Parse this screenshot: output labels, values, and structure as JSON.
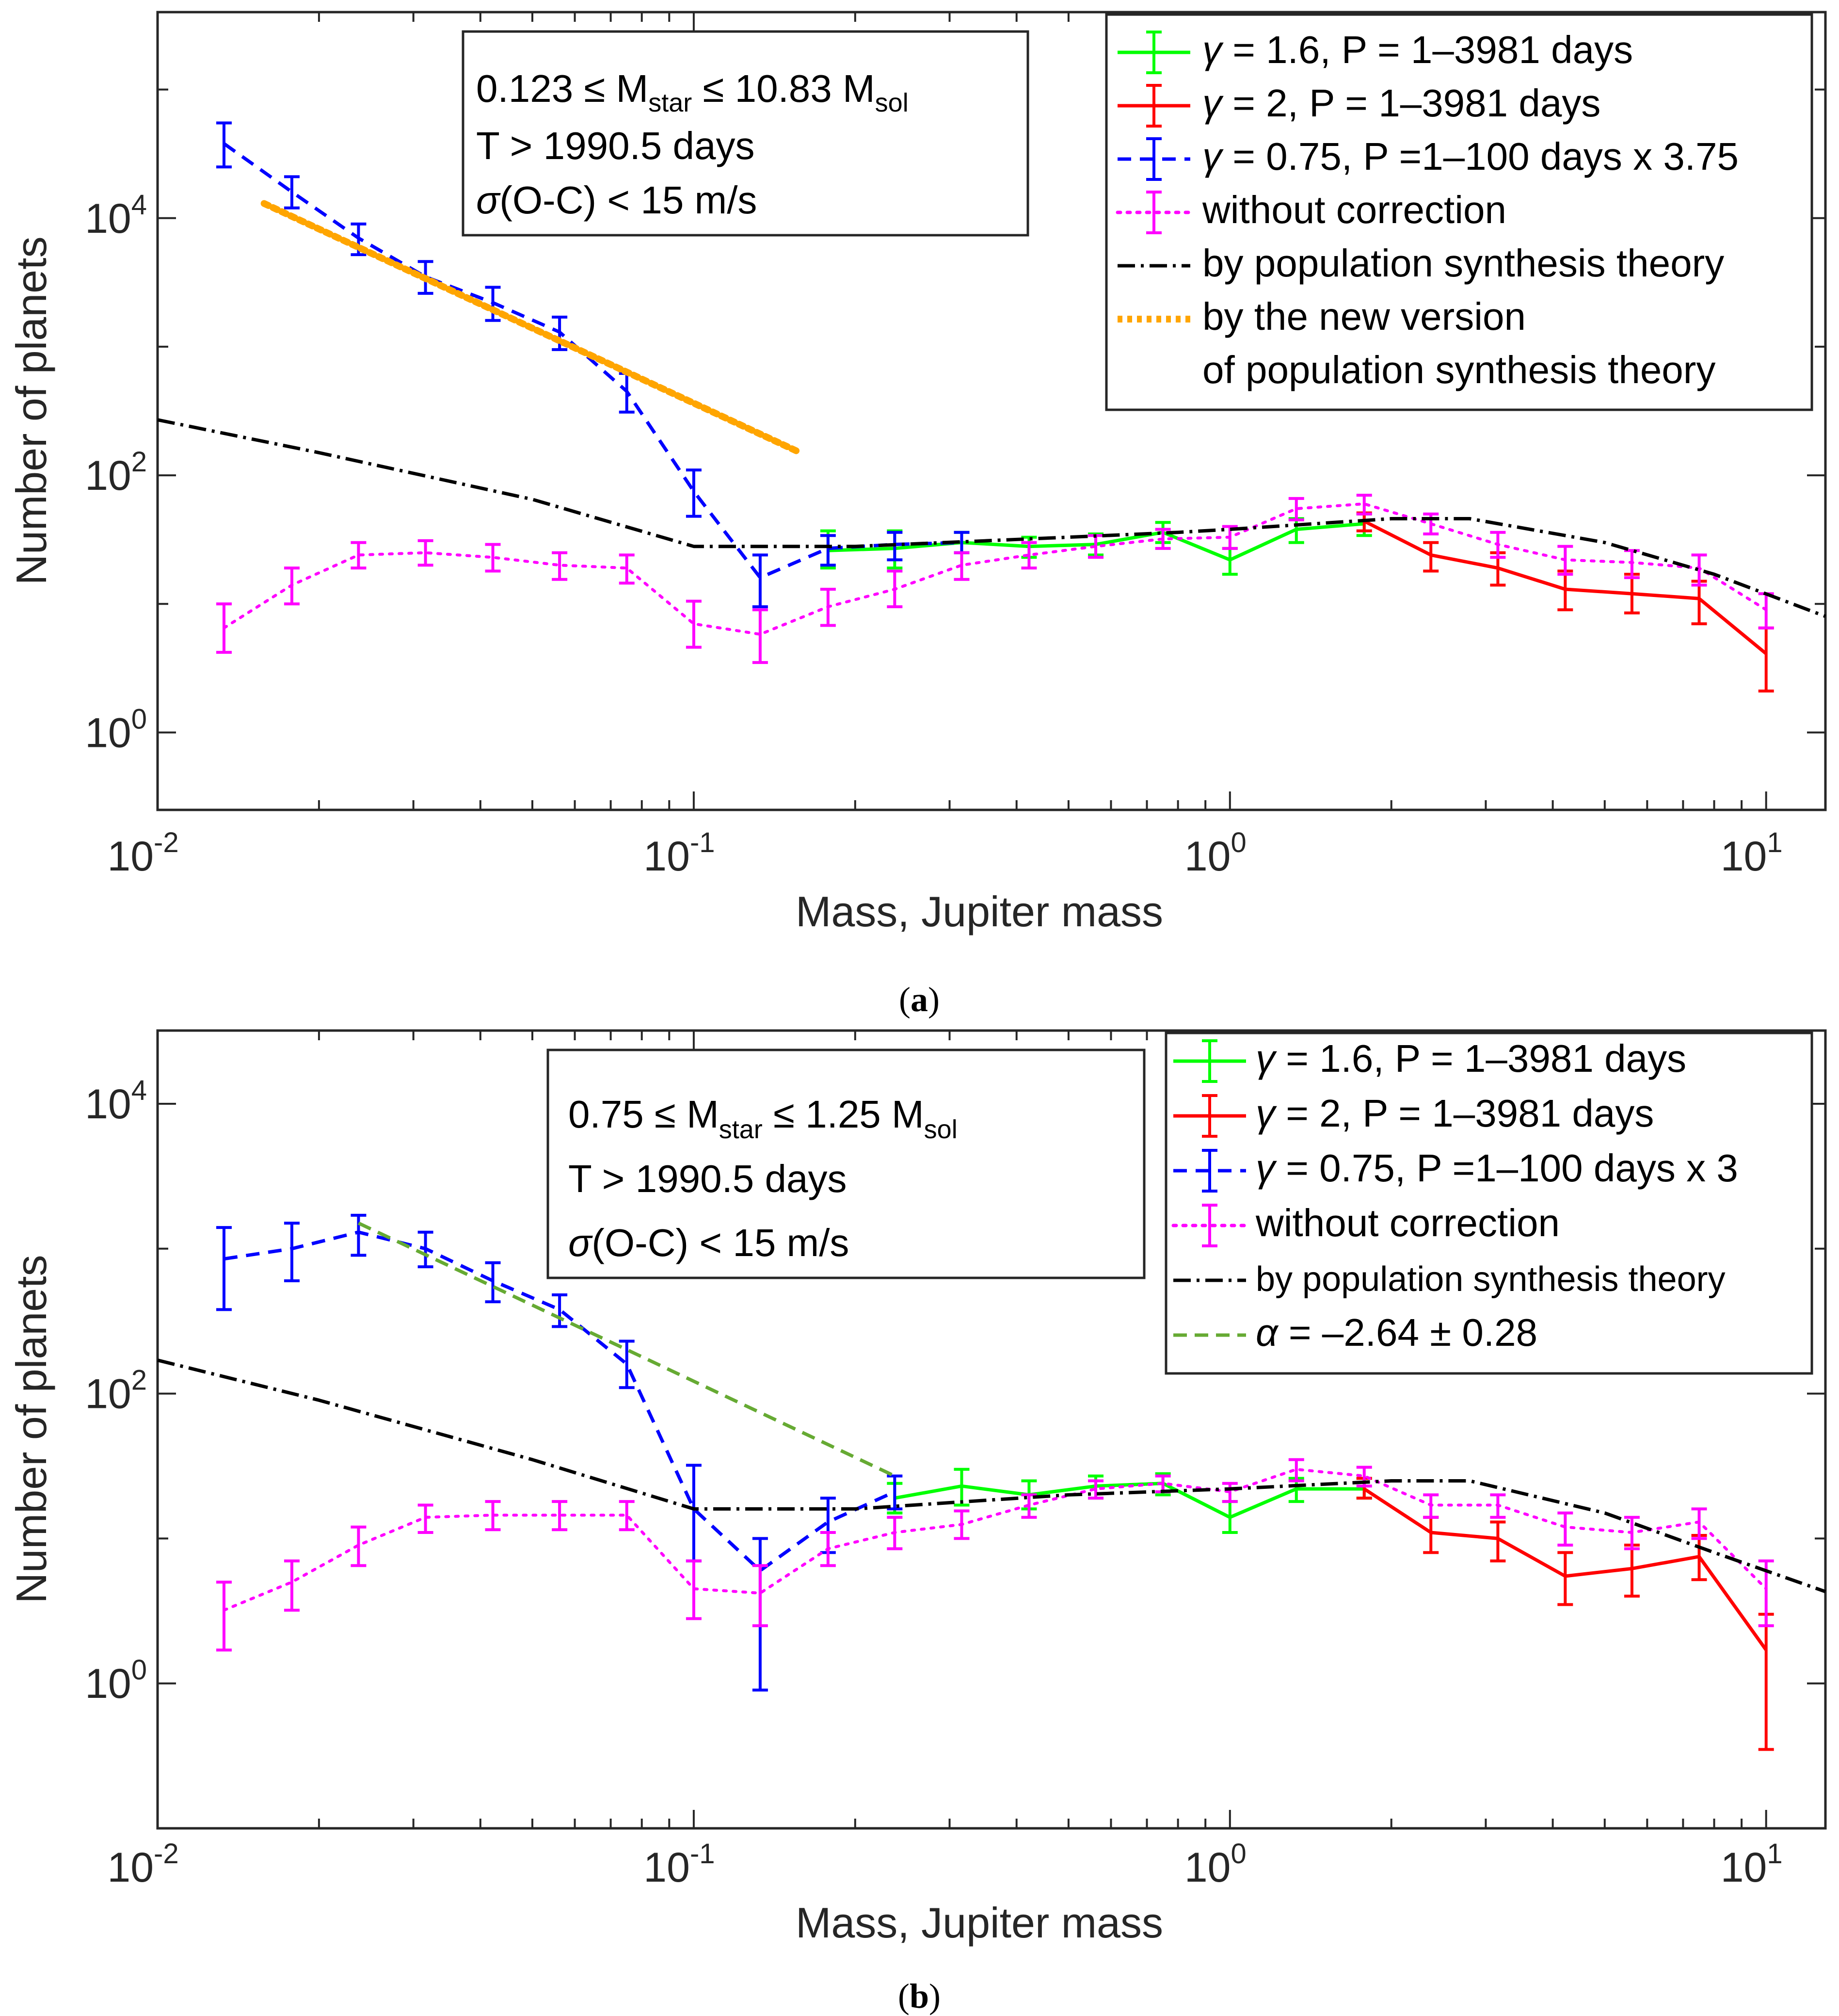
{
  "figure": {
    "caption_a": "(a)",
    "caption_b": "(b)",
    "caption_a_letter": "a",
    "caption_b_letter": "b"
  },
  "chart_data": [
    {
      "type": "line",
      "panel": "a",
      "xlabel": "Mass, Jupiter mass",
      "ylabel": "Number of planets",
      "xscale": "log",
      "yscale": "log",
      "xlim": [
        0.01,
        12.9
      ],
      "ylim": [
        0.25,
        400000
      ],
      "xticks": [
        {
          "base": "10",
          "exp": "-2"
        },
        {
          "base": "10",
          "exp": "-1"
        },
        {
          "base": "10",
          "exp": "0"
        },
        {
          "base": "10",
          "exp": "1"
        }
      ],
      "yticks": [
        {
          "base": "10",
          "exp": "0"
        },
        {
          "base": "10",
          "exp": "2"
        },
        {
          "base": "10",
          "exp": "4"
        }
      ],
      "info": {
        "line1_pre": "0.123 ≤ M",
        "line1_sub1": "star",
        "line1_mid": " ≤ 10.83 M",
        "line1_sub2": "sol",
        "line2": "T > 1990.5 days",
        "line3_sym": "σ",
        "line3_rest": "(O-C) < 15 m/s"
      },
      "legend": [
        {
          "sym": "γ",
          "label": " = 1.6, P = 1–3981 days",
          "color": "#00ff00",
          "style": "solid"
        },
        {
          "sym": "γ",
          "label": " = 2, P = 1–3981 days",
          "color": "#ff0000",
          "style": "solid"
        },
        {
          "sym": "γ",
          "label": " = 0.75, P =1–100 days x 3.75",
          "color": "#0000ff",
          "style": "dashed"
        },
        {
          "sym": "",
          "label": "without correction",
          "color": "#ff00ff",
          "style": "dotted"
        },
        {
          "sym": "",
          "label": "by population synthesis theory",
          "color": "#000000",
          "style": "dashdot"
        },
        {
          "sym": "",
          "label": "by the new version",
          "color": "#ffa500",
          "style": "thickdot"
        },
        {
          "sym": "",
          "label": "of population synthesis theory",
          "color": "",
          "style": "none"
        }
      ],
      "series": [
        {
          "name": "green",
          "color": "#00ff00",
          "width": 7,
          "dash": "",
          "errbars": true,
          "points": [
            [
              0.178,
              26,
              37,
              19
            ],
            [
              0.237,
              27,
              37,
              19
            ],
            [
              0.316,
              30,
              36,
              25
            ],
            [
              0.422,
              28,
              33,
              23
            ],
            [
              0.562,
              29,
              35,
              24
            ],
            [
              0.75,
              36,
              43,
              30
            ],
            [
              1.0,
              22,
              27,
              17
            ],
            [
              1.33,
              38,
              46,
              30
            ],
            [
              1.78,
              42,
              50,
              34
            ]
          ]
        },
        {
          "name": "red",
          "color": "#ff0000",
          "width": 7,
          "dash": "",
          "errbars": true,
          "points": [
            [
              1.78,
              44,
              51,
              37
            ],
            [
              2.37,
              24,
              30,
              18
            ],
            [
              3.16,
              19,
              25,
              14
            ],
            [
              4.22,
              13,
              18,
              9
            ],
            [
              5.62,
              12,
              17,
              8.5
            ],
            [
              7.5,
              11,
              15,
              7
            ],
            [
              10.0,
              4.1,
              6.5,
              2.1
            ]
          ]
        },
        {
          "name": "blue",
          "color": "#0000ff",
          "width": 7,
          "dash": "28,18",
          "errbars": true,
          "points": [
            [
              0.0133,
              38000,
              55000,
              25000
            ],
            [
              0.0178,
              16000,
              21000,
              12000
            ],
            [
              0.0237,
              7000,
              9000,
              5200
            ],
            [
              0.0316,
              3500,
              4600,
              2600
            ],
            [
              0.0422,
              2200,
              2900,
              1600
            ],
            [
              0.0562,
              1300,
              1700,
              950
            ],
            [
              0.075,
              450,
              620,
              310
            ],
            [
              0.1,
              75,
              110,
              48
            ],
            [
              0.133,
              16,
              24,
              9.5
            ],
            [
              0.178,
              27,
              34,
              20
            ],
            [
              0.237,
              29,
              36,
              22
            ],
            [
              0.316,
              30,
              36,
              25
            ]
          ]
        },
        {
          "name": "magenta",
          "color": "#ff00ff",
          "width": 6,
          "dash": "6,14",
          "errbars": true,
          "points": [
            [
              0.0133,
              6.5,
              10,
              4.2
            ],
            [
              0.0178,
              14,
              19,
              10
            ],
            [
              0.0237,
              24,
              30,
              19
            ],
            [
              0.0316,
              25,
              31,
              20
            ],
            [
              0.0422,
              23,
              29,
              18
            ],
            [
              0.0562,
              20,
              25,
              15.5
            ],
            [
              0.075,
              19,
              24,
              14.5
            ],
            [
              0.1,
              7,
              10.5,
              4.6
            ],
            [
              0.133,
              5.8,
              9,
              3.5
            ],
            [
              0.178,
              9.5,
              13,
              6.8
            ],
            [
              0.237,
              13,
              18,
              9.5
            ],
            [
              0.316,
              20,
              25,
              15.5
            ],
            [
              0.422,
              24,
              30,
              19
            ],
            [
              0.562,
              28,
              34,
              23
            ],
            [
              0.75,
              32,
              38,
              27
            ],
            [
              1.0,
              33,
              40,
              27
            ],
            [
              1.33,
              55,
              66,
              45
            ],
            [
              1.78,
              60,
              70,
              50
            ],
            [
              2.37,
              42,
              50,
              35
            ],
            [
              3.16,
              29,
              36,
              23
            ],
            [
              4.22,
              22,
              28,
              17
            ],
            [
              5.62,
              21,
              26,
              16
            ],
            [
              7.5,
              19,
              24,
              14
            ],
            [
              10.0,
              9,
              12,
              6.5
            ]
          ]
        },
        {
          "name": "black",
          "color": "#000000",
          "width": 7,
          "dash": "36,12,6,12",
          "errbars": false,
          "points": [
            [
              0.01,
              270
            ],
            [
              0.02,
              150
            ],
            [
              0.05,
              65
            ],
            [
              0.1,
              28
            ],
            [
              0.2,
              28
            ],
            [
              0.5,
              33
            ],
            [
              0.8,
              36
            ],
            [
              1.0,
              38
            ],
            [
              2.0,
              46
            ],
            [
              2.8,
              46
            ],
            [
              5.0,
              30
            ],
            [
              8.0,
              17
            ],
            [
              12.9,
              8
            ]
          ]
        },
        {
          "name": "orange",
          "color": "#ffa500",
          "width": 14,
          "dash": "10,10",
          "errbars": false,
          "points": [
            [
              0.0158,
              13000
            ],
            [
              0.158,
              150
            ]
          ]
        }
      ]
    },
    {
      "type": "line",
      "panel": "b",
      "xlabel": "Mass, Jupiter mass",
      "ylabel": "Number of planets",
      "xscale": "log",
      "yscale": "log",
      "xlim": [
        0.01,
        12.9
      ],
      "ylim": [
        0.1,
        32000
      ],
      "xticks": [
        {
          "base": "10",
          "exp": "-2"
        },
        {
          "base": "10",
          "exp": "-1"
        },
        {
          "base": "10",
          "exp": "0"
        },
        {
          "base": "10",
          "exp": "1"
        }
      ],
      "yticks": [
        {
          "base": "10",
          "exp": "0"
        },
        {
          "base": "10",
          "exp": "2"
        },
        {
          "base": "10",
          "exp": "4"
        }
      ],
      "info": {
        "line1_pre": "0.75 ≤ M",
        "line1_sub1": "star",
        "line1_mid": " ≤ 1.25 M",
        "line1_sub2": "sol",
        "line2": "T > 1990.5 days",
        "line3_sym": "σ",
        "line3_rest": "(O-C) < 15 m/s"
      },
      "legend": [
        {
          "sym": "γ",
          "label": " = 1.6, P = 1–3981 days",
          "color": "#00ff00",
          "style": "solid"
        },
        {
          "sym": "γ",
          "label": " = 2, P = 1–3981 days",
          "color": "#ff0000",
          "style": "solid"
        },
        {
          "sym": "γ",
          "label": " = 0.75, P =1–100 days x 3",
          "color": "#0000ff",
          "style": "dashed"
        },
        {
          "sym": "",
          "label": "without correction",
          "color": "#ff00ff",
          "style": "dotted"
        },
        {
          "sym": "",
          "label": "by population synthesis theory",
          "color": "#000000",
          "style": "dashdot"
        },
        {
          "sym": "α",
          "label": " = –2.64 ± 0.28",
          "color": "#66aa33",
          "style": "dashedgreen"
        }
      ],
      "series": [
        {
          "name": "green",
          "color": "#00ff00",
          "width": 7,
          "dash": "",
          "errbars": true,
          "points": [
            [
              0.237,
              19,
              24,
              15
            ],
            [
              0.316,
              23,
              30,
              17
            ],
            [
              0.422,
              20,
              25,
              16
            ],
            [
              0.562,
              23,
              27,
              19
            ],
            [
              0.75,
              24,
              28,
              20
            ],
            [
              1.0,
              14,
              18,
              11
            ],
            [
              1.33,
              22,
              26,
              18
            ],
            [
              1.78,
              22,
              26,
              19
            ]
          ]
        },
        {
          "name": "red",
          "color": "#ff0000",
          "width": 7,
          "dash": "",
          "errbars": true,
          "points": [
            [
              1.78,
              22,
              26,
              19
            ],
            [
              2.37,
              11,
              14,
              8
            ],
            [
              3.16,
              10,
              13,
              7
            ],
            [
              4.22,
              5.5,
              8,
              3.5
            ],
            [
              5.62,
              6.2,
              9,
              4.0
            ],
            [
              7.5,
              7.5,
              10.5,
              5.2
            ],
            [
              10.0,
              1.7,
              3.0,
              0.35
            ]
          ]
        },
        {
          "name": "blue",
          "color": "#0000ff",
          "width": 7,
          "dash": "28,18",
          "errbars": true,
          "points": [
            [
              0.0133,
              850,
              1400,
              380
            ],
            [
              0.0178,
              1000,
              1500,
              600
            ],
            [
              0.0237,
              1300,
              1700,
              900
            ],
            [
              0.0316,
              1000,
              1300,
              750
            ],
            [
              0.0422,
              600,
              800,
              430
            ],
            [
              0.0562,
              380,
              480,
              290
            ],
            [
              0.075,
              160,
              230,
              110
            ],
            [
              0.1,
              16,
              32,
              7
            ],
            [
              0.133,
              6,
              10,
              0.9
            ],
            [
              0.178,
              13,
              19,
              8
            ],
            [
              0.237,
              21,
              27,
              16
            ]
          ]
        },
        {
          "name": "magenta",
          "color": "#ff00ff",
          "width": 6,
          "dash": "6,14",
          "errbars": true,
          "points": [
            [
              0.0133,
              3.2,
              5,
              1.7
            ],
            [
              0.0178,
              5,
              7,
              3.2
            ],
            [
              0.0237,
              9,
              12,
              6.5
            ],
            [
              0.0316,
              14,
              17,
              11
            ],
            [
              0.0422,
              14.5,
              18,
              11.5
            ],
            [
              0.0562,
              14.5,
              18,
              11.5
            ],
            [
              0.075,
              14.5,
              18,
              11.5
            ],
            [
              0.1,
              4.5,
              7,
              2.8
            ],
            [
              0.133,
              4.2,
              6.5,
              2.5
            ],
            [
              0.178,
              8.5,
              11,
              6.5
            ],
            [
              0.237,
              11,
              14,
              8.5
            ],
            [
              0.316,
              12.5,
              15.5,
              10
            ],
            [
              0.422,
              17,
              20,
              14
            ],
            [
              0.562,
              22,
              25,
              19
            ],
            [
              0.75,
              24,
              27,
              21
            ],
            [
              1.0,
              21,
              24,
              18
            ],
            [
              1.33,
              30,
              35,
              25
            ],
            [
              1.78,
              27,
              31,
              23
            ],
            [
              2.37,
              17,
              20,
              14
            ],
            [
              3.16,
              17,
              20,
              14
            ],
            [
              4.22,
              12,
              15,
              9
            ],
            [
              5.62,
              11,
              14,
              8.5
            ],
            [
              7.5,
              13,
              16,
              10
            ],
            [
              10.0,
              4.5,
              7,
              2.5
            ]
          ]
        },
        {
          "name": "black",
          "color": "#000000",
          "width": 7,
          "dash": "36,12,6,12",
          "errbars": false,
          "points": [
            [
              0.01,
              170
            ],
            [
              0.02,
              90
            ],
            [
              0.05,
              35
            ],
            [
              0.1,
              16
            ],
            [
              0.2,
              16
            ],
            [
              0.5,
              20
            ],
            [
              1.0,
              22
            ],
            [
              2.0,
              25
            ],
            [
              2.8,
              25
            ],
            [
              5.0,
              15
            ],
            [
              8.0,
              8
            ],
            [
              12.9,
              4.3
            ]
          ]
        },
        {
          "name": "olive",
          "color": "#66aa33",
          "width": 7,
          "dash": "28,16",
          "errbars": false,
          "points": [
            [
              0.0237,
              1500
            ],
            [
              0.237,
              27
            ]
          ]
        }
      ]
    }
  ]
}
